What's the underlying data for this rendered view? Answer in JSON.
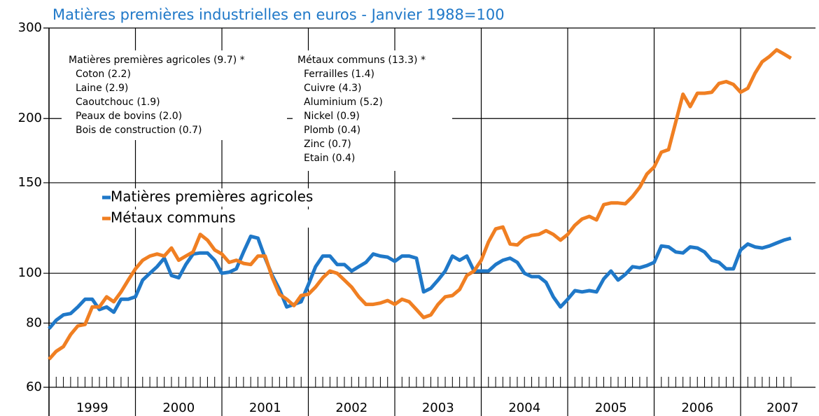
{
  "chart_data": {
    "type": "line",
    "title": "Matières premières industrielles en euros - Janvier 1988=100",
    "log_scale": true,
    "grid": true,
    "ylim": [
      60,
      300
    ],
    "yticks": [
      60,
      80,
      100,
      150,
      200,
      300
    ],
    "categories": [
      "1999",
      null,
      null,
      null,
      null,
      null,
      null,
      null,
      null,
      null,
      null,
      null,
      "2000",
      null,
      null,
      null,
      null,
      null,
      null,
      null,
      null,
      null,
      null,
      null,
      "2001",
      null,
      null,
      null,
      null,
      null,
      null,
      null,
      null,
      null,
      null,
      null,
      "2002",
      null,
      null,
      null,
      null,
      null,
      null,
      null,
      null,
      null,
      null,
      null,
      "2003",
      null,
      null,
      null,
      null,
      null,
      null,
      null,
      null,
      null,
      null,
      null,
      "2004",
      null,
      null,
      null,
      null,
      null,
      null,
      null,
      null,
      null,
      null,
      null,
      "2005",
      null,
      null,
      null,
      null,
      null,
      null,
      null,
      null,
      null,
      null,
      null,
      "2006",
      null,
      null,
      null,
      null,
      null,
      null,
      null,
      null,
      null,
      null,
      null,
      "2007",
      null,
      null,
      null,
      null,
      null,
      null,
      null
    ],
    "series": [
      {
        "name": "Matières premières agricoles",
        "color": "#1f78c8",
        "values": [
          78,
          81,
          83,
          83.5,
          86,
          89,
          89,
          85,
          86,
          84,
          89,
          89,
          90,
          97,
          100,
          103,
          107,
          99,
          98,
          104,
          109,
          109.5,
          109.5,
          106,
          100,
          100.5,
          102,
          110,
          118,
          117,
          107,
          99,
          93,
          86,
          87,
          88,
          95,
          103,
          108,
          108,
          104,
          104,
          101,
          103,
          105,
          109,
          108,
          107.5,
          105.5,
          108,
          108,
          107,
          92,
          93.5,
          97,
          101,
          108,
          106,
          108,
          101,
          101,
          101,
          104,
          106,
          107,
          105,
          100,
          98.5,
          98.5,
          96,
          90,
          86,
          89,
          92.5,
          92,
          92.5,
          92,
          97.5,
          101,
          97,
          99.5,
          103,
          102.5,
          103.5,
          105,
          113,
          112.5,
          110,
          109.5,
          112.5,
          112,
          110,
          106,
          105,
          102,
          102,
          111,
          114,
          112.5,
          112,
          113,
          114.5,
          116,
          117
        ]
      },
      {
        "name": "Métaux communs",
        "color": "#f07f22",
        "values": [
          68,
          70.5,
          72,
          76,
          79,
          79.5,
          86,
          86,
          90,
          88,
          92,
          97,
          102,
          106,
          108,
          109,
          108,
          112,
          106,
          108,
          110,
          119,
          116,
          111,
          109,
          105,
          106,
          104.5,
          104,
          108,
          108,
          98,
          91,
          89,
          86.5,
          90.5,
          91,
          94,
          98,
          101,
          100,
          97,
          94,
          90,
          87,
          87,
          87.5,
          88.5,
          87,
          89,
          88,
          85,
          82,
          83,
          87,
          90,
          90.5,
          93,
          99,
          101,
          106,
          115,
          122,
          123,
          114,
          113.5,
          117,
          118.5,
          119,
          121,
          119,
          116,
          119,
          124,
          127.5,
          129,
          127,
          136,
          137,
          137,
          136.5,
          141,
          147,
          156,
          161,
          172,
          174,
          197,
          223,
          211,
          224,
          224,
          225,
          234,
          236,
          233,
          225,
          229,
          245,
          258,
          264,
          272,
          267,
          262
        ]
      }
    ],
    "annotations": [
      {
        "header": "Matières premières agricoles (9.7) *",
        "items": [
          "Coton (2.2)",
          "Laine (2.9)",
          "Caoutchouc (1.9)",
          "Peaux de bovins (2.0)",
          "Bois de construction (0.7)"
        ]
      },
      {
        "header": "Métaux communs (13.3) *",
        "items": [
          "Ferrailles (1.4)",
          "Cuivre (4.3)",
          "Aluminium (5.2)",
          "Nickel (0.9)",
          "Plomb (0.4)",
          "Zinc (0.7)",
          "Etain (0.4)"
        ]
      }
    ]
  }
}
